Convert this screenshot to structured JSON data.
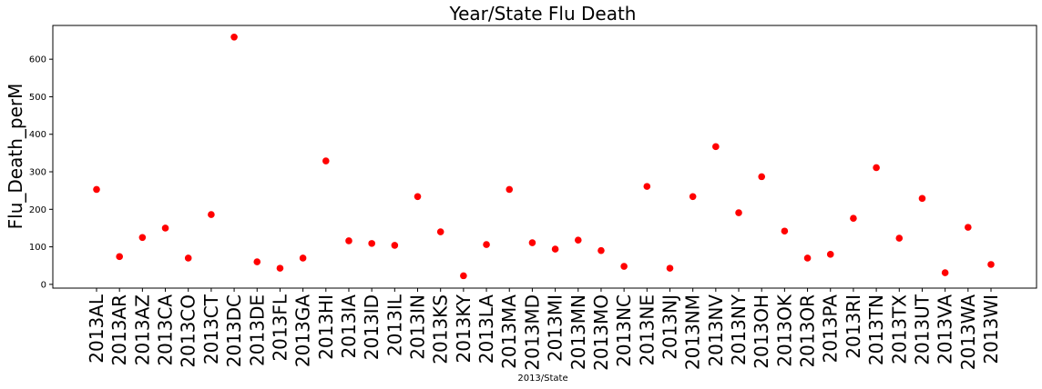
{
  "chart_data": {
    "type": "scatter",
    "title": "Year/State Flu Death",
    "xlabel": "2013/State",
    "ylabel": "Flu_Death_perM",
    "ylim": [
      -10,
      690
    ],
    "yticks": [
      0,
      100,
      200,
      300,
      400,
      500,
      600
    ],
    "grid": false,
    "marker_color": "#ff0000",
    "categories": [
      "2013AL",
      "2013AR",
      "2013AZ",
      "2013CA",
      "2013CO",
      "2013CT",
      "2013DC",
      "2013DE",
      "2013FL",
      "2013GA",
      "2013HI",
      "2013IA",
      "2013ID",
      "2013IL",
      "2013IN",
      "2013KS",
      "2013KY",
      "2013LA",
      "2013MA",
      "2013MD",
      "2013MI",
      "2013MN",
      "2013MO",
      "2013NC",
      "2013NE",
      "2013NJ",
      "2013NM",
      "2013NV",
      "2013NY",
      "2013OH",
      "2013OK",
      "2013OR",
      "2013PA",
      "2013RI",
      "2013TN",
      "2013TX",
      "2013UT",
      "2013VA",
      "2013WA",
      "2013WI"
    ],
    "values": [
      253,
      74,
      125,
      150,
      70,
      186,
      659,
      60,
      43,
      70,
      329,
      116,
      109,
      104,
      234,
      140,
      23,
      106,
      253,
      111,
      94,
      118,
      90,
      48,
      261,
      43,
      234,
      367,
      191,
      287,
      142,
      70,
      80,
      176,
      311,
      123,
      229,
      31,
      152,
      53
    ]
  }
}
